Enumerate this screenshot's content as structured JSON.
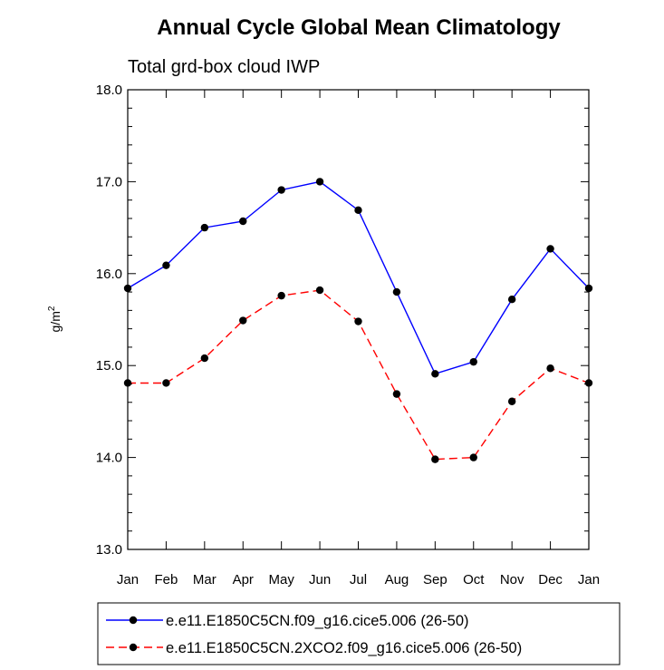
{
  "chart_data": {
    "type": "line",
    "title": "Annual Cycle Global Mean Climatology",
    "subtitle": "Total grd-box cloud IWP",
    "xlabel": "",
    "ylabel_base": "g/m",
    "ylabel_sup": "2",
    "ylim": [
      13.0,
      18.0
    ],
    "yticks": [
      13.0,
      14.0,
      15.0,
      16.0,
      17.0,
      18.0
    ],
    "ytick_labels": [
      "13.0",
      "14.0",
      "15.0",
      "16.0",
      "17.0",
      "18.0"
    ],
    "categories": [
      "Jan",
      "Feb",
      "Mar",
      "Apr",
      "May",
      "Jun",
      "Jul",
      "Aug",
      "Sep",
      "Oct",
      "Nov",
      "Dec",
      "Jan"
    ],
    "series": [
      {
        "name": "e.e11.E1850C5CN.f09_g16.cice5.006 (26-50)",
        "color": "#0000ff",
        "dash": "solid",
        "values": [
          15.84,
          16.09,
          16.5,
          16.57,
          16.91,
          17.0,
          16.69,
          15.8,
          14.91,
          15.04,
          15.72,
          16.27,
          15.84
        ]
      },
      {
        "name": "e.e11.E1850C5CN.2XCO2.f09_g16.cice5.006 (26-50)",
        "color": "#ff0000",
        "dash": "dashed",
        "values": [
          14.81,
          14.81,
          15.08,
          15.49,
          15.76,
          15.82,
          15.48,
          14.69,
          13.98,
          14.0,
          14.61,
          14.97,
          14.81
        ]
      }
    ],
    "legend_position": "bottom",
    "marker": "filled-circle",
    "grid": false
  }
}
